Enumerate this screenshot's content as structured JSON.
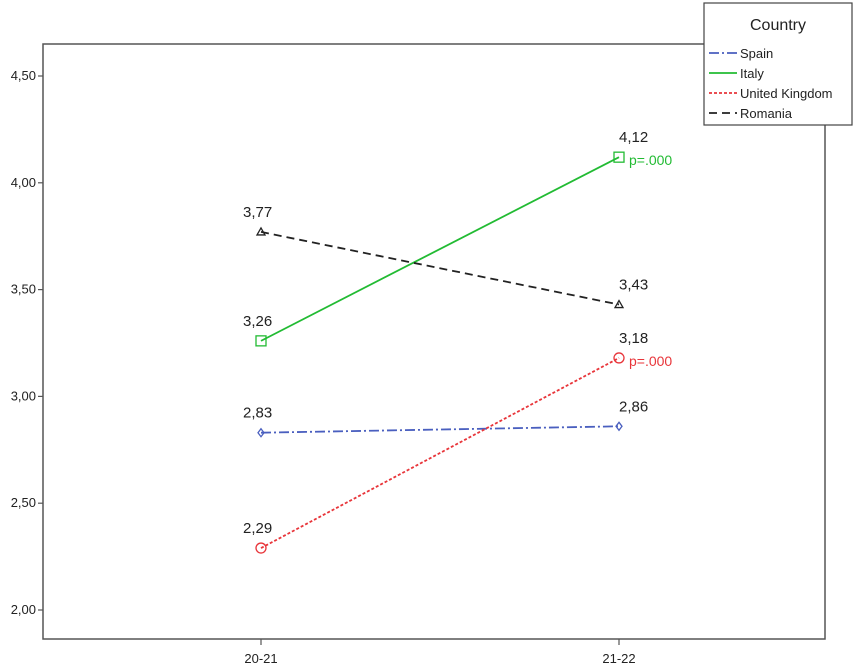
{
  "chart_data": {
    "type": "line",
    "categories": [
      "20-21",
      "21-22"
    ],
    "ylim": [
      2.0,
      4.5
    ],
    "yticks": [
      "2,00",
      "2,50",
      "3,00",
      "3,50",
      "4,00",
      "4,50"
    ],
    "ytick_values": [
      2.0,
      2.5,
      3.0,
      3.5,
      4.0,
      4.5
    ],
    "grid": false,
    "legend": {
      "title": "Country",
      "placement": "top-right"
    },
    "series": [
      {
        "name": "Spain",
        "values": [
          2.83,
          2.86
        ],
        "labels": [
          "2,83",
          "2,86"
        ],
        "color": "#4a5fbf",
        "dash": "dashdot",
        "marker": "diamond",
        "annotation": ""
      },
      {
        "name": "Italy",
        "values": [
          3.26,
          4.12
        ],
        "labels": [
          "3,26",
          "4,12"
        ],
        "color": "#22bb33",
        "dash": "solid",
        "marker": "square",
        "annotation": "p=.000"
      },
      {
        "name": "United Kingdom",
        "values": [
          2.29,
          3.18
        ],
        "labels": [
          "2,29",
          "3,18"
        ],
        "color": "#e8353a",
        "dash": "dotted",
        "marker": "circle",
        "annotation": "p=.000"
      },
      {
        "name": "Romania",
        "values": [
          3.77,
          3.43
        ],
        "labels": [
          "3,77",
          "3,43"
        ],
        "color": "#222222",
        "dash": "dashed",
        "marker": "triangle",
        "annotation": ""
      }
    ]
  }
}
